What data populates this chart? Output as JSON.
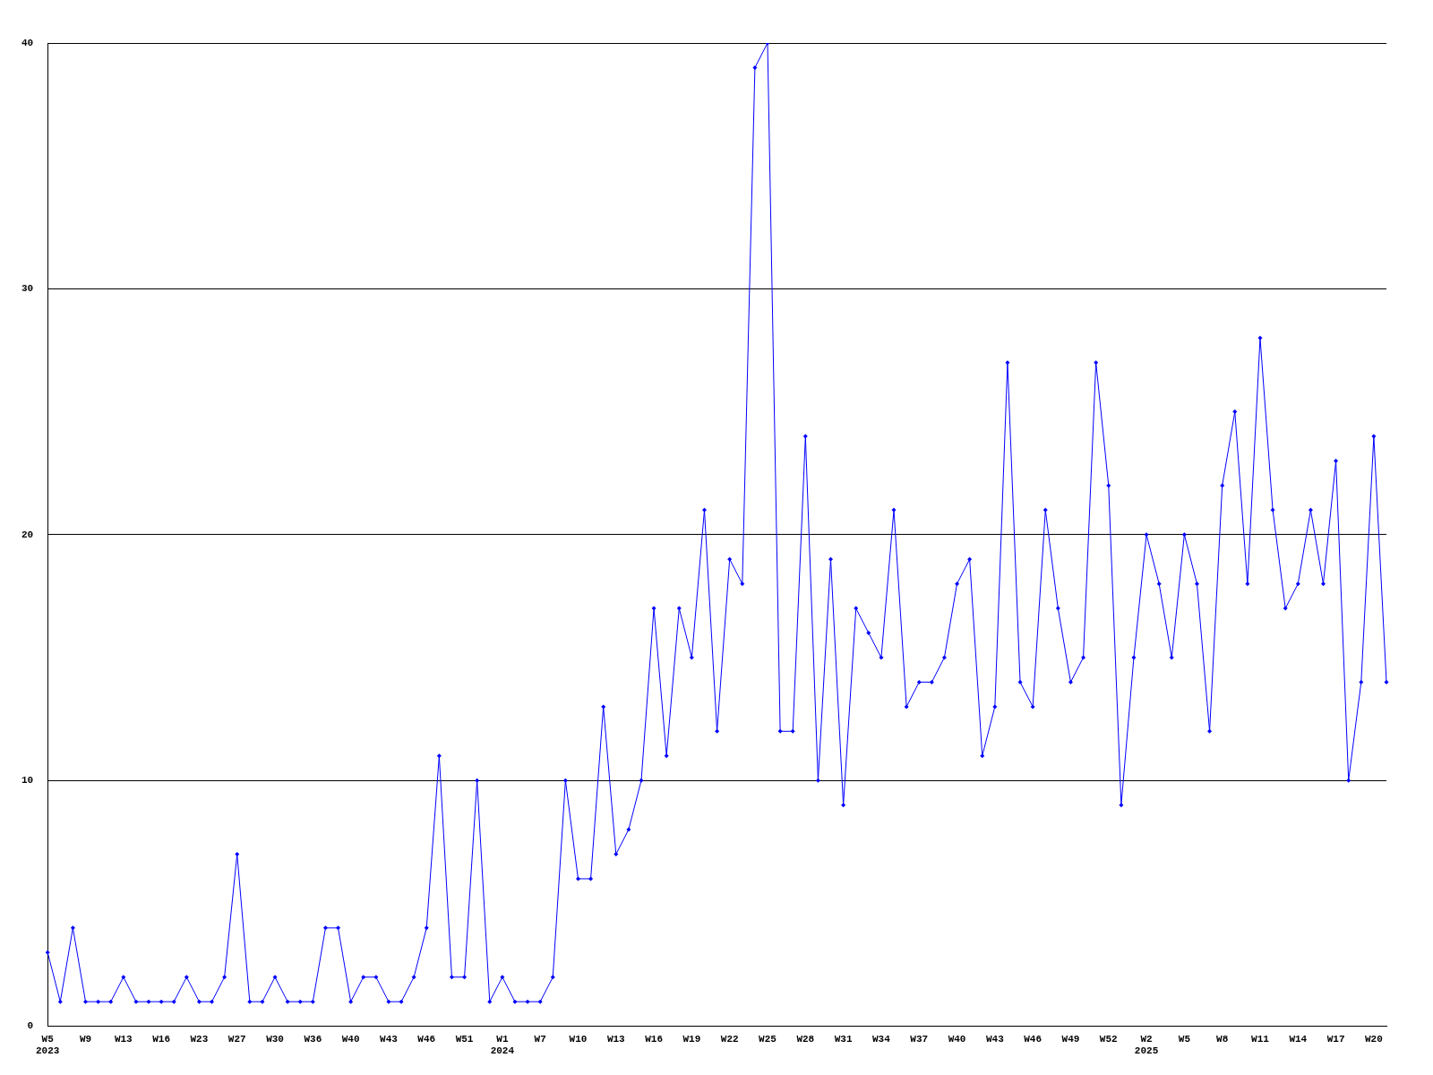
{
  "chart_data": {
    "type": "line",
    "categories": [
      "W5\n2023",
      null,
      null,
      "W9",
      null,
      null,
      "W13",
      null,
      null,
      "W16",
      null,
      null,
      "W23",
      null,
      null,
      "W27",
      null,
      null,
      "W30",
      null,
      null,
      "W36",
      null,
      null,
      "W40",
      null,
      null,
      "W43",
      null,
      null,
      "W46",
      null,
      null,
      "W51",
      null,
      null,
      "W1\n2024",
      null,
      null,
      "W7",
      null,
      null,
      "W10",
      null,
      null,
      "W13",
      null,
      null,
      "W16",
      null,
      null,
      "W19",
      null,
      null,
      "W22",
      null,
      null,
      "W25",
      null,
      null,
      "W28",
      null,
      null,
      "W31",
      null,
      null,
      "W34",
      null,
      null,
      "W37",
      null,
      null,
      "W40",
      null,
      null,
      "W43",
      null,
      null,
      "W46",
      null,
      null,
      "W49",
      null,
      null,
      "W52",
      null,
      null,
      "W2\n2025",
      null,
      null,
      "W5",
      null,
      null,
      "W8",
      null,
      null,
      "W11",
      null,
      null,
      "W14",
      null,
      null,
      "W17",
      null,
      null,
      "W20",
      null
    ],
    "series": [
      {
        "color": "#0000ff",
        "values": [
          3,
          1,
          4,
          1,
          1,
          1,
          2,
          1,
          1,
          1,
          1,
          2,
          1,
          1,
          2,
          7,
          1,
          1,
          2,
          1,
          1,
          1,
          4,
          4,
          1,
          2,
          2,
          1,
          1,
          2,
          4,
          11,
          2,
          2,
          10,
          1,
          2,
          1,
          1,
          1,
          2,
          10,
          6,
          6,
          13,
          7,
          8,
          10,
          17,
          11,
          17,
          15,
          21,
          12,
          19,
          18,
          39,
          40,
          12,
          12,
          24,
          10,
          19,
          9,
          17,
          16,
          15,
          21,
          13,
          14,
          14,
          15,
          18,
          19,
          11,
          13,
          27,
          14,
          13,
          21,
          17,
          14,
          15,
          27,
          22,
          9,
          15,
          20,
          18,
          15,
          20,
          18,
          12,
          22,
          25,
          18,
          28,
          21,
          17,
          18,
          21,
          18,
          23,
          10,
          14,
          24,
          14
        ]
      }
    ],
    "ylim": [
      0,
      40
    ],
    "yticks": [
      0,
      10,
      20,
      30,
      40
    ],
    "grid": "y",
    "legend": false,
    "marker": "diamond",
    "line_style": "solid"
  }
}
